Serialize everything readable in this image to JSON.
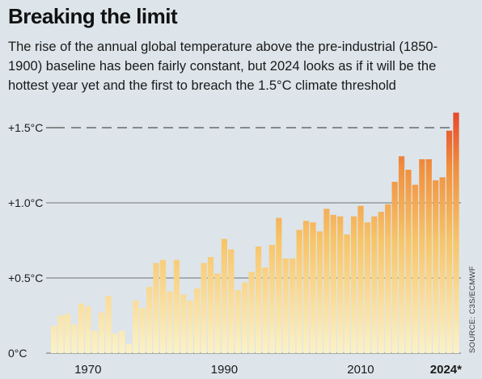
{
  "header": {
    "title": "Breaking the limit",
    "subtitle": "The rise of the annual global temperature above the pre-industrial (1850-1900) baseline has been fairly constant, but 2024 looks as if it will be the hottest year yet and the first to breach the 1.5°C climate threshold"
  },
  "source": "SOURCE: C3S/ECMWF",
  "colors": {
    "background": "#dde5ea",
    "bar_top_low": "#f2b453",
    "bar_top_high": "#e8442c",
    "bar_bottom": "#fbf2c8"
  },
  "chart_data": {
    "type": "bar",
    "x": [
      1965,
      1966,
      1967,
      1968,
      1969,
      1970,
      1971,
      1972,
      1973,
      1974,
      1975,
      1976,
      1977,
      1978,
      1979,
      1980,
      1981,
      1982,
      1983,
      1984,
      1985,
      1986,
      1987,
      1988,
      1989,
      1990,
      1991,
      1992,
      1993,
      1994,
      1995,
      1996,
      1997,
      1998,
      1999,
      2000,
      2001,
      2002,
      2003,
      2004,
      2005,
      2006,
      2007,
      2008,
      2009,
      2010,
      2011,
      2012,
      2013,
      2014,
      2015,
      2016,
      2017,
      2018,
      2019,
      2020,
      2021,
      2022,
      2023,
      2024
    ],
    "values": [
      0.18,
      0.25,
      0.26,
      0.19,
      0.33,
      0.31,
      0.15,
      0.27,
      0.38,
      0.13,
      0.15,
      0.06,
      0.35,
      0.3,
      0.44,
      0.6,
      0.62,
      0.41,
      0.62,
      0.39,
      0.35,
      0.43,
      0.6,
      0.64,
      0.53,
      0.76,
      0.69,
      0.42,
      0.47,
      0.54,
      0.71,
      0.57,
      0.72,
      0.9,
      0.63,
      0.63,
      0.82,
      0.88,
      0.87,
      0.81,
      0.96,
      0.92,
      0.91,
      0.79,
      0.91,
      0.98,
      0.87,
      0.91,
      0.94,
      0.99,
      1.14,
      1.31,
      1.22,
      1.12,
      1.29,
      1.29,
      1.15,
      1.17,
      1.48,
      1.6
    ],
    "x_ticks": [
      "1970",
      "1990",
      "2010",
      "2024*"
    ],
    "y_ticks": [
      "0°C",
      "+0.5°C",
      "+1.0°C",
      "+1.5°C"
    ],
    "y_tick_values": [
      0,
      0.5,
      1.0,
      1.5
    ],
    "ylim": [
      0,
      1.6
    ],
    "threshold": 1.5,
    "grid": true
  }
}
